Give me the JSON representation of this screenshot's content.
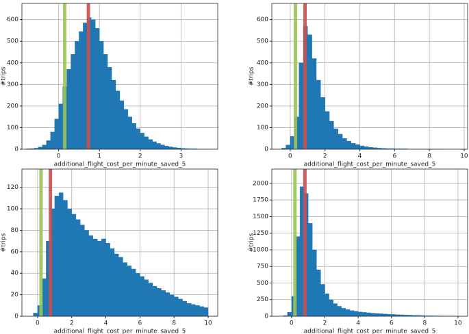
{
  "chart_data": [
    {
      "type": "histogram",
      "xlabel": "additional_flight_cost_per_minute_saved_5",
      "ylabel": "#trips",
      "color": "#1f77b4",
      "grid": true,
      "bins": [
        -0.8,
        -0.7,
        -0.6,
        -0.5,
        -0.4,
        -0.3,
        -0.2,
        -0.1,
        0,
        0.1,
        0.2,
        0.3,
        0.4,
        0.5,
        0.6,
        0.7,
        0.8,
        0.9,
        1.0,
        1.1,
        1.2,
        1.3,
        1.4,
        1.5,
        1.6,
        1.7,
        1.8,
        1.9,
        2.0,
        2.1,
        2.2,
        2.3,
        2.4,
        2.5,
        2.6,
        2.7,
        2.8,
        2.9,
        3.0,
        3.1,
        3.2,
        3.3,
        3.4,
        3.5,
        3.6,
        3.7,
        3.8
      ],
      "values": [
        2,
        3,
        5,
        10,
        20,
        40,
        80,
        140,
        210,
        290,
        370,
        440,
        500,
        545,
        585,
        610,
        600,
        560,
        500,
        440,
        380,
        320,
        270,
        225,
        185,
        150,
        120,
        95,
        75,
        58,
        45,
        35,
        27,
        20,
        15,
        11,
        8,
        6,
        4,
        3,
        2,
        2,
        1,
        1,
        1,
        0
      ],
      "vlines": [
        {
          "value": 0.15,
          "color": "#9bc25a"
        },
        {
          "value": 0.73,
          "color": "#c9504f"
        }
      ],
      "xlim": [
        -0.9,
        3.9
      ],
      "xticks": [
        0,
        1,
        2,
        3
      ],
      "ylim": [
        0,
        675
      ],
      "yticks": [
        0,
        100,
        200,
        300,
        400,
        500,
        600
      ]
    },
    {
      "type": "histogram",
      "xlabel": "additional_flight_cost_per_minute_saved_5",
      "ylabel": "#trips",
      "color": "#1f77b4",
      "grid": true,
      "bins": [
        -0.5,
        -0.25,
        0,
        0.25,
        0.5,
        0.75,
        1.0,
        1.25,
        1.5,
        1.75,
        2.0,
        2.25,
        2.5,
        2.75,
        3.0,
        3.25,
        3.5,
        3.75,
        4.0,
        4.25,
        4.5,
        4.75,
        5.0,
        5.25,
        5.5,
        5.75,
        6.0,
        6.25,
        6.5,
        6.75,
        7.0,
        7.25,
        7.5,
        7.75,
        8.0,
        8.25,
        8.5,
        8.75,
        9.0,
        9.25,
        9.5,
        9.75,
        10.0
      ],
      "values": [
        5,
        20,
        60,
        150,
        400,
        570,
        530,
        420,
        320,
        240,
        175,
        130,
        95,
        70,
        50,
        38,
        28,
        21,
        16,
        12,
        9,
        7,
        5,
        4,
        3,
        3,
        2,
        2,
        2,
        1,
        1,
        1,
        1,
        1,
        1,
        1,
        1,
        0,
        0,
        0,
        0,
        0
      ],
      "vlines": [
        {
          "value": 0.3,
          "color": "#9bc25a"
        },
        {
          "value": 0.85,
          "color": "#c9504f"
        }
      ],
      "xlim": [
        -1.06,
        10.2
      ],
      "xticks": [
        0,
        2,
        4,
        6,
        8,
        10
      ],
      "ylim": [
        0,
        675
      ],
      "yticks": [
        0,
        100,
        200,
        300,
        400,
        500,
        600
      ]
    },
    {
      "type": "histogram",
      "xlabel": "additional_flight_cost_per_minute_saved_5",
      "ylabel": "#trips",
      "color": "#1f77b4",
      "grid": true,
      "bins": [
        -0.25,
        0,
        0.25,
        0.5,
        0.75,
        1.0,
        1.25,
        1.5,
        1.75,
        2.0,
        2.25,
        2.5,
        2.75,
        3.0,
        3.25,
        3.5,
        3.75,
        4.0,
        4.25,
        4.5,
        4.75,
        5.0,
        5.25,
        5.5,
        5.75,
        6.0,
        6.25,
        6.5,
        6.75,
        7.0,
        7.25,
        7.5,
        7.75,
        8.0,
        8.25,
        8.5,
        8.75,
        9.0,
        9.25,
        9.5,
        9.75,
        10.0
      ],
      "values": [
        3,
        10,
        35,
        70,
        100,
        112,
        115,
        108,
        100,
        95,
        90,
        85,
        80,
        75,
        72,
        70,
        72,
        68,
        63,
        58,
        55,
        50,
        47,
        44,
        40,
        37,
        34,
        31,
        28,
        26,
        24,
        22,
        20,
        18,
        16,
        14,
        12,
        11,
        10,
        9,
        8
      ],
      "vlines": [
        {
          "value": 0.2,
          "color": "#9bc25a"
        },
        {
          "value": 0.75,
          "color": "#c9504f"
        }
      ],
      "xlim": [
        -0.92,
        10.56
      ],
      "xticks": [
        0,
        2,
        4,
        6,
        8,
        10
      ],
      "ylim": [
        0,
        137
      ],
      "yticks": [
        0,
        20,
        40,
        60,
        80,
        100,
        120
      ]
    },
    {
      "type": "histogram",
      "xlabel": "additional_flight_cost_per_minute_saved_5",
      "ylabel": "#trips",
      "color": "#1f77b4",
      "grid": true,
      "bins": [
        -0.5,
        -0.25,
        0,
        0.25,
        0.5,
        0.75,
        1.0,
        1.25,
        1.5,
        1.75,
        2.0,
        2.25,
        2.5,
        2.75,
        3.0,
        3.25,
        3.5,
        3.75,
        4.0,
        4.25,
        4.5,
        4.75,
        5.0,
        5.25,
        5.5,
        5.75,
        6.0,
        6.25,
        6.5,
        6.75,
        7.0,
        7.25,
        7.5,
        7.75,
        8.0,
        8.25,
        8.5,
        8.75,
        9.0,
        9.25,
        9.5,
        9.75,
        10.0
      ],
      "values": [
        10,
        60,
        300,
        1200,
        1950,
        1850,
        1400,
        1000,
        700,
        480,
        340,
        250,
        190,
        150,
        120,
        100,
        85,
        75,
        65,
        58,
        52,
        46,
        42,
        38,
        34,
        30,
        27,
        24,
        21,
        18,
        16,
        14,
        12,
        10,
        8,
        7,
        6,
        5,
        4,
        3,
        2,
        2
      ],
      "vlines": [
        {
          "value": 0.2,
          "color": "#9bc25a"
        },
        {
          "value": 0.8,
          "color": "#c9504f"
        }
      ],
      "xlim": [
        -1.19,
        10.58
      ],
      "xticks": [
        0,
        2,
        4,
        6,
        8,
        10
      ],
      "ylim": [
        0,
        2216
      ],
      "yticks": [
        0,
        250,
        500,
        750,
        1000,
        1250,
        1500,
        1750,
        2000
      ]
    }
  ]
}
